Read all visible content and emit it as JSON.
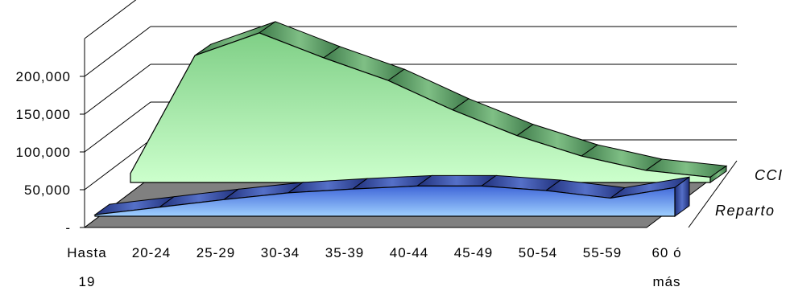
{
  "chart_data": {
    "type": "area",
    "style": "3d-stacked-depth",
    "categories": [
      [
        "Hasta",
        "19"
      ],
      [
        "20-24"
      ],
      [
        "25-29"
      ],
      [
        "30-34"
      ],
      [
        "35-39"
      ],
      [
        "40-44"
      ],
      [
        "45-49"
      ],
      [
        "50-54"
      ],
      [
        "55-59"
      ],
      [
        "60 ó",
        "más"
      ]
    ],
    "series": [
      {
        "name": "CCI",
        "values": [
          12000,
          168000,
          198000,
          165000,
          135000,
          96000,
          62000,
          35000,
          16000,
          7000
        ],
        "color": "#9fdfa0"
      },
      {
        "name": "Reparto",
        "values": [
          2000,
          12000,
          22000,
          31000,
          36000,
          40000,
          40000,
          34000,
          24000,
          38000
        ],
        "color": "#6e8fe0"
      }
    ],
    "y_ticks": [
      "-",
      "50,000",
      "100,000",
      "150,000",
      "200,000"
    ],
    "ylim": [
      0,
      250000
    ],
    "title": "",
    "xlabel": "",
    "ylabel": "",
    "grid": true
  }
}
